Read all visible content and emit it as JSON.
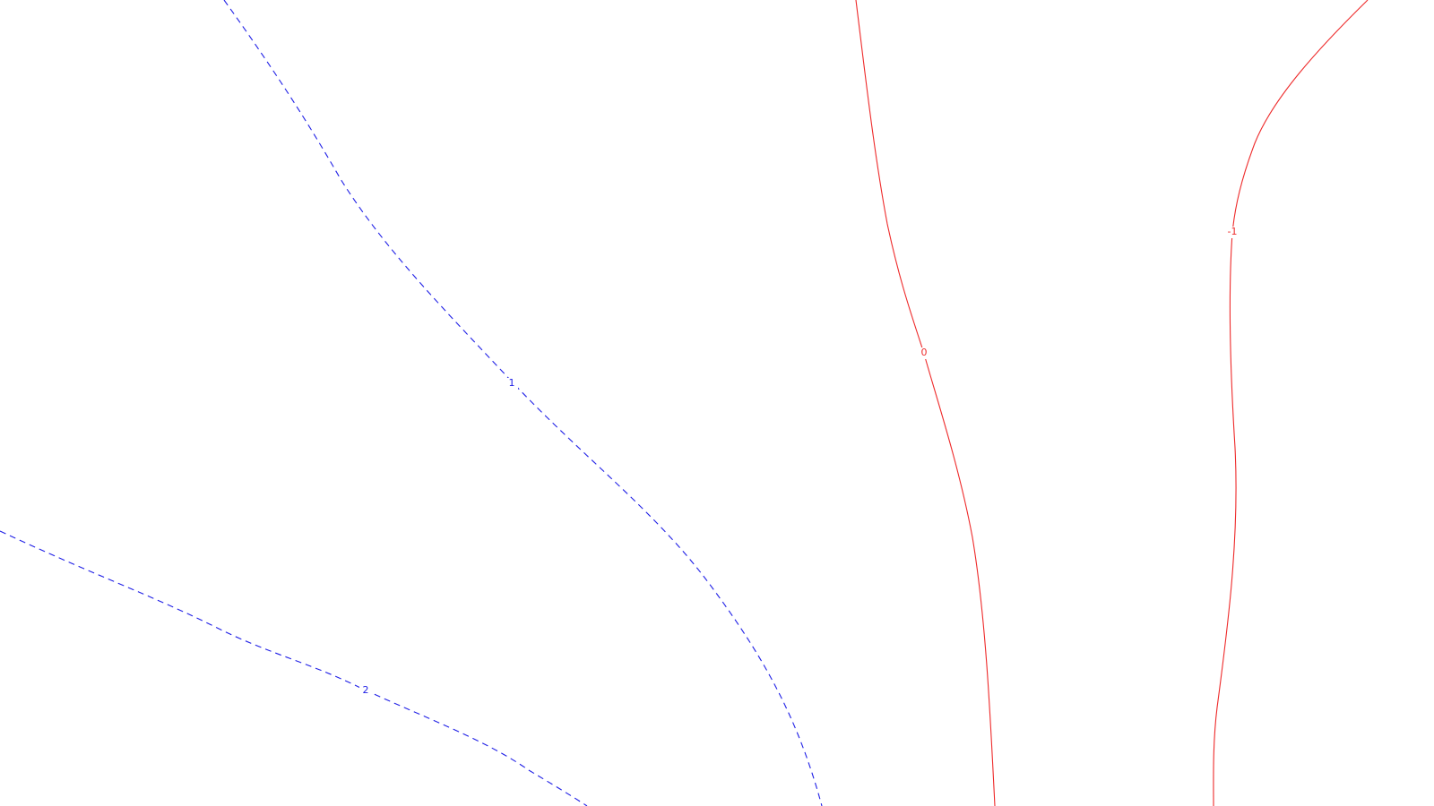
{
  "colors": {
    "negative": "#1f1fe6",
    "positive": "#ee2a2a",
    "background": "#ffffff"
  },
  "contours": [
    {
      "id": "contour-2",
      "label": "2",
      "color": "#1f1fe6",
      "style": "dashed"
    },
    {
      "id": "contour-1",
      "label": "1",
      "color": "#1f1fe6",
      "style": "dashed"
    },
    {
      "id": "contour-0",
      "label": "0",
      "color": "#ee2a2a",
      "style": "solid"
    },
    {
      "id": "contour-neg1",
      "label": "-1",
      "color": "#ee2a2a",
      "style": "solid"
    }
  ]
}
